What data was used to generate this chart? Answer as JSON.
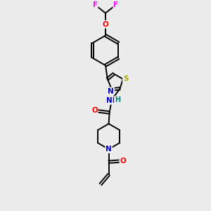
{
  "background_color": "#ececec",
  "bond_color": "#000000",
  "atom_colors": {
    "F": "#ff00ff",
    "O": "#ff0000",
    "N": "#0000cc",
    "S": "#aaaa00",
    "H": "#008080",
    "C": "#000000"
  },
  "figsize": [
    3.0,
    3.0
  ],
  "dpi": 100
}
